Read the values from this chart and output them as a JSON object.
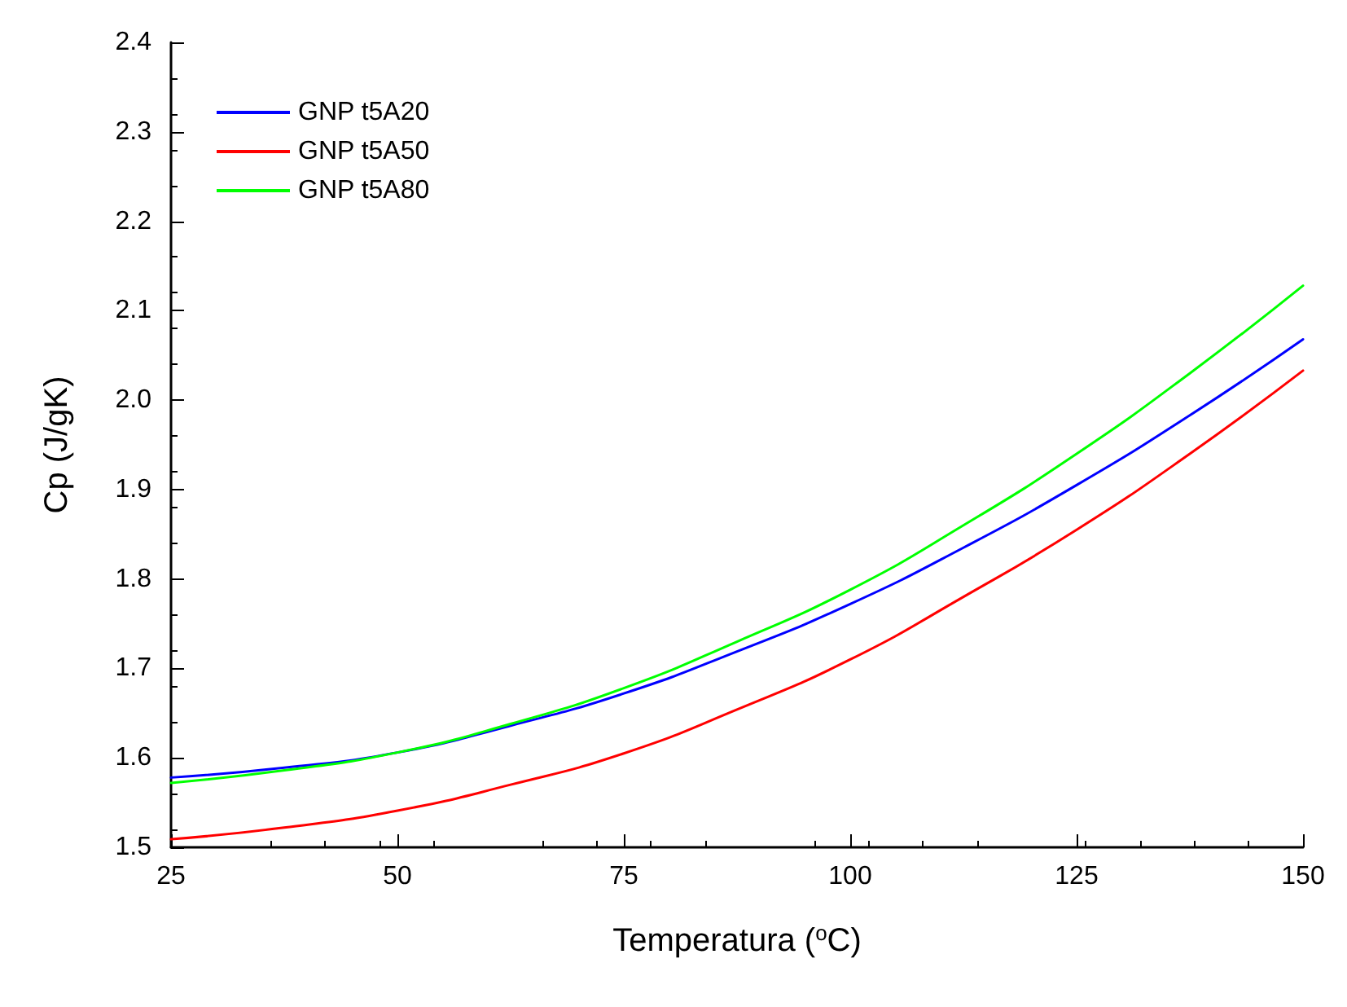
{
  "chart_data": {
    "type": "line",
    "xlabel": "Temperatura ($^{o}$C)",
    "ylabel": "Cp (J/gK)",
    "x": [
      25,
      37.5,
      50,
      62.5,
      75,
      87.5,
      100,
      112.5,
      125,
      137.5,
      150
    ],
    "series": [
      {
        "name": "GNP t5A20",
        "color": "#0000ff",
        "values": [
          1.578,
          1.589,
          1.606,
          1.636,
          1.672,
          1.719,
          1.772,
          1.835,
          1.905,
          1.983,
          2.068
        ]
      },
      {
        "name": "GNP t5A50",
        "color": "#ff0000",
        "values": [
          1.509,
          1.522,
          1.541,
          1.57,
          1.605,
          1.654,
          1.71,
          1.78,
          1.855,
          1.94,
          2.033
        ]
      },
      {
        "name": "GNP t5A80",
        "color": "#00ff00",
        "values": [
          1.572,
          1.586,
          1.606,
          1.638,
          1.678,
          1.73,
          1.788,
          1.86,
          1.94,
          2.03,
          2.128
        ]
      }
    ],
    "xlim": [
      25,
      150
    ],
    "xticks": [
      25,
      50,
      75,
      100,
      125,
      150
    ],
    "ylim": [
      1.5,
      2.4
    ],
    "yticks": [
      1.5,
      1.6,
      1.7,
      1.8,
      1.9,
      {
        "value": 2,
        "label": "2.0"
      },
      2.1,
      2.2,
      2.3,
      2.4
    ],
    "grid": false,
    "legend": "top left",
    "marker": "none",
    "line_style": "solid"
  }
}
